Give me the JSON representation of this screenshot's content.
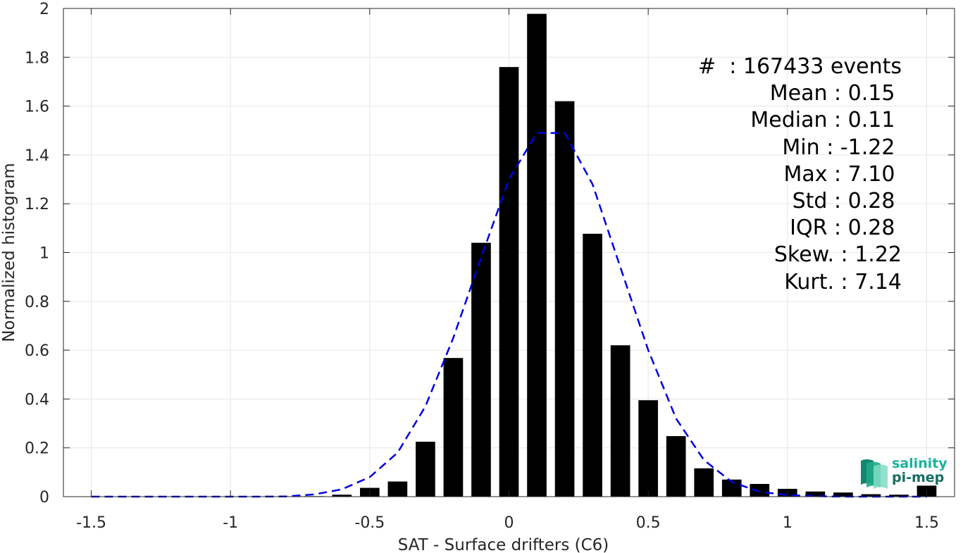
{
  "chart_data": {
    "type": "bar",
    "xlabel": "SAT - Surface drifters (C6)",
    "ylabel": "Normalized histogram",
    "xlim": [
      -1.6,
      1.6
    ],
    "ylim": [
      0,
      2
    ],
    "grid": true,
    "xticks": [
      -1.5,
      -1,
      -0.5,
      0,
      0.5,
      1,
      1.5
    ],
    "xtick_labels": [
      "-1.5",
      "-1",
      "-0.5",
      "0",
      "0.5",
      "1",
      "1.5"
    ],
    "yticks": [
      0,
      0.2,
      0.4,
      0.6,
      0.8,
      1,
      1.2,
      1.4,
      1.6,
      1.8,
      2
    ],
    "ytick_labels": [
      "0",
      "0.2",
      "0.4",
      "0.6",
      "0.8",
      "1",
      "1.2",
      "1.4",
      "1.6",
      "1.8",
      "2"
    ],
    "bar_width": 0.07,
    "bars": {
      "x": [
        -1.5,
        -1.4,
        -1.3,
        -1.2,
        -1.1,
        -1.0,
        -0.9,
        -0.8,
        -0.7,
        -0.6,
        -0.5,
        -0.4,
        -0.3,
        -0.2,
        -0.1,
        0.0,
        0.1,
        0.2,
        0.3,
        0.4,
        0.5,
        0.6,
        0.7,
        0.8,
        0.9,
        1.0,
        1.1,
        1.2,
        1.3,
        1.4,
        1.5
      ],
      "values": [
        0,
        0,
        0,
        0,
        0,
        0,
        0,
        0.001,
        0.002,
        0.008,
        0.036,
        0.062,
        0.225,
        0.568,
        1.04,
        1.76,
        1.978,
        1.62,
        1.077,
        0.62,
        0.395,
        0.248,
        0.116,
        0.07,
        0.052,
        0.032,
        0.021,
        0.017,
        0.01,
        0.008,
        0.045
      ],
      "color": "#000000"
    },
    "fit_curve": {
      "style": "dashed",
      "color": "#0000e0",
      "x": [
        -1.5,
        -1.4,
        -1.3,
        -1.2,
        -1.1,
        -1.0,
        -0.9,
        -0.8,
        -0.7,
        -0.6,
        -0.5,
        -0.4,
        -0.3,
        -0.2,
        -0.1,
        0.0,
        0.1,
        0.2,
        0.3,
        0.4,
        0.5,
        0.6,
        0.7,
        0.8,
        0.9,
        1.0,
        1.1,
        1.2,
        1.3,
        1.4,
        1.5
      ],
      "y": [
        0,
        0,
        0,
        0,
        0,
        0,
        0,
        0.001,
        0.009,
        0.03,
        0.08,
        0.18,
        0.37,
        0.65,
        0.98,
        1.3,
        1.49,
        1.49,
        1.28,
        0.94,
        0.6,
        0.32,
        0.15,
        0.06,
        0.02,
        0.007,
        0.002,
        0,
        0,
        0,
        0
      ]
    },
    "annotations": [
      "#  : 167433 events",
      "Mean : 0.15 ",
      "Median : 0.11 ",
      "Min : -1.22 ",
      "Max : 7.10 ",
      "Std : 0.28 ",
      "IQR : 0.28 ",
      "Skew. : 1.22",
      "Kurt. : 7.14"
    ]
  },
  "logo": {
    "line1": "salinity",
    "line2": "pi-mep"
  }
}
